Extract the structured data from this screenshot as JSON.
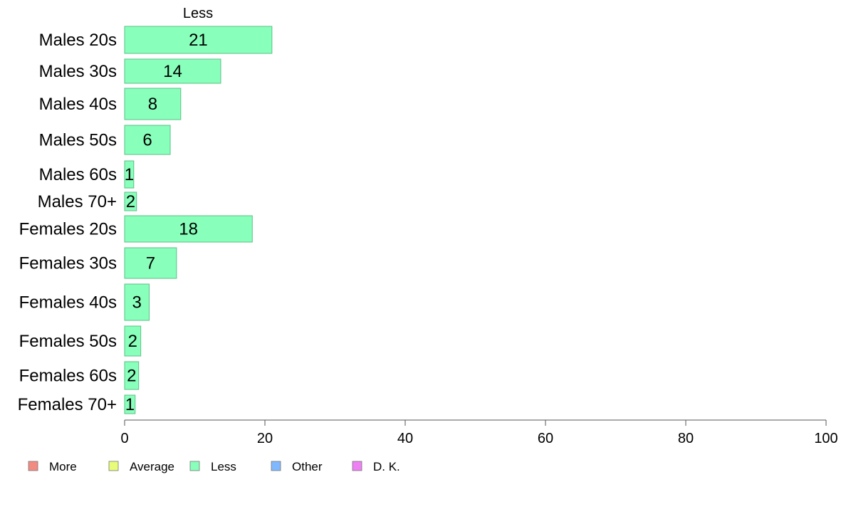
{
  "chart_data": {
    "type": "bar",
    "orientation": "horizontal",
    "column_title": "Less",
    "categories": [
      "Males 20s",
      "Males 30s",
      "Males 40s",
      "Males 50s",
      "Males 60s",
      "Males 70+",
      "Females 20s",
      "Females 30s",
      "Females 40s",
      "Females 50s",
      "Females 60s",
      "Females 70+"
    ],
    "series": [
      {
        "name": "Less",
        "values": [
          21,
          14,
          8,
          6,
          1,
          2,
          18,
          7,
          3,
          2,
          2,
          1
        ]
      }
    ],
    "bar_values": [
      21,
      13.7,
      8,
      6.5,
      1.3,
      1.7,
      18.2,
      7.4,
      3.5,
      2.3,
      2,
      1.5
    ],
    "xlim": [
      0,
      100
    ],
    "xticks": [
      0,
      20,
      40,
      60,
      80,
      100
    ],
    "legend": {
      "placement": "bottom-left",
      "items": [
        {
          "label": "More",
          "color": "#f28b82"
        },
        {
          "label": "Average",
          "color": "#e8fc7a"
        },
        {
          "label": "Less",
          "color": "#88ffbb"
        },
        {
          "label": "Other",
          "color": "#80b8ff"
        },
        {
          "label": "D. K.",
          "color": "#ee80f4"
        }
      ]
    },
    "colors": {
      "bar_fill": "#88ffbb",
      "bar_stroke": "#5bbf86",
      "axis": "#555555"
    },
    "grid": false
  }
}
